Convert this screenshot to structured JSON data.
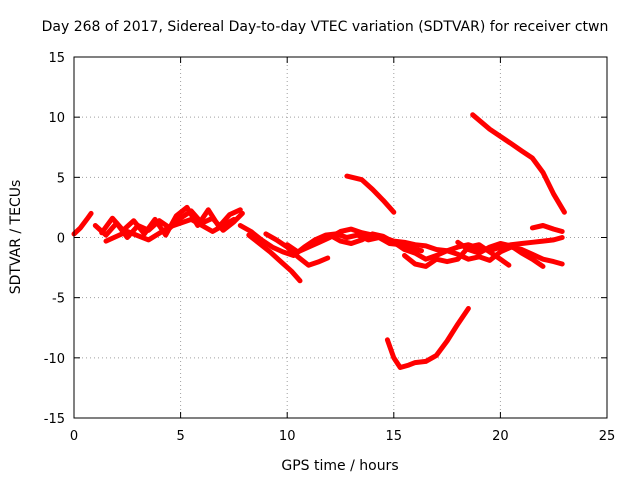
{
  "chart_data": {
    "type": "line",
    "title": "Day 268 of 2017, Sidereal Day-to-day VTEC variation (SDTVAR) for receiver ctwn",
    "xlabel": "GPS time / hours",
    "ylabel": "SDTVAR / TECUs",
    "xlim": [
      0,
      25
    ],
    "ylim": [
      -15,
      15
    ],
    "xticks": [
      0,
      5,
      10,
      15,
      20,
      25
    ],
    "yticks": [
      -15,
      -10,
      -5,
      0,
      5,
      10,
      15
    ],
    "grid": true,
    "line_color": "#ff0000",
    "series": [
      {
        "x": [
          0.0,
          0.3,
          0.6,
          0.8
        ],
        "y": [
          0.3,
          0.8,
          1.5,
          2.0
        ]
      },
      {
        "x": [
          1.0,
          1.5,
          2.0,
          2.5,
          3.0,
          3.5,
          4.0,
          4.5,
          5.0,
          5.5,
          6.0,
          6.5,
          7.0,
          7.5,
          7.9
        ],
        "y": [
          1.0,
          0.2,
          1.2,
          0.0,
          1.0,
          0.6,
          1.4,
          0.8,
          1.6,
          2.2,
          1.2,
          1.6,
          0.6,
          1.3,
          2.0
        ]
      },
      {
        "x": [
          1.3,
          1.8,
          2.3,
          2.8,
          3.3,
          3.8,
          4.3,
          4.8,
          5.3,
          5.8,
          6.3,
          6.8,
          7.3,
          7.8
        ],
        "y": [
          0.4,
          1.6,
          0.6,
          1.4,
          0.3,
          1.5,
          0.2,
          1.8,
          2.5,
          1.0,
          2.3,
          0.9,
          1.9,
          2.3
        ]
      },
      {
        "x": [
          1.5,
          2.5,
          3.5,
          4.5,
          5.5,
          6.5,
          7.5
        ],
        "y": [
          -0.3,
          0.5,
          -0.2,
          0.9,
          1.5,
          0.5,
          1.5
        ]
      },
      {
        "x": [
          7.8,
          8.3,
          8.8,
          9.3,
          9.8,
          10.3,
          10.8,
          11.3,
          11.8,
          12.3,
          12.8,
          13.3,
          13.8,
          14.3,
          14.8,
          15.3,
          15.8,
          16.3
        ],
        "y": [
          1.0,
          0.5,
          -0.2,
          -0.8,
          -1.2,
          -1.5,
          -0.8,
          -0.2,
          0.2,
          0.3,
          0.0,
          0.2,
          -0.2,
          0.0,
          -0.5,
          -0.6,
          -0.9,
          -1.1
        ]
      },
      {
        "x": [
          8.2,
          8.7,
          9.2,
          9.7,
          10.2,
          10.6
        ],
        "y": [
          0.2,
          -0.5,
          -1.2,
          -2.0,
          -2.8,
          -3.6
        ]
      },
      {
        "x": [
          9.0,
          9.5,
          10.0,
          10.5,
          11.0,
          11.5,
          11.9
        ],
        "y": [
          0.3,
          -0.2,
          -0.8,
          -1.6,
          -2.3,
          -2.0,
          -1.7
        ]
      },
      {
        "x": [
          10.0,
          10.5,
          11.0,
          11.5,
          12.0,
          12.5,
          13.0,
          13.5,
          14.0,
          14.5,
          15.0,
          15.5,
          16.0,
          16.5,
          17.0,
          17.5,
          18.0,
          18.5,
          19.0,
          19.5,
          20.0,
          20.5,
          21.0,
          21.5,
          22.0,
          22.5,
          22.9
        ],
        "y": [
          -0.6,
          -1.2,
          -0.8,
          -0.4,
          0.0,
          0.5,
          0.7,
          0.4,
          0.2,
          0.0,
          -0.3,
          -0.4,
          -0.6,
          -0.7,
          -1.0,
          -1.1,
          -0.8,
          -0.6,
          -0.9,
          -1.1,
          -0.8,
          -0.6,
          -0.5,
          -0.4,
          -0.3,
          -0.2,
          0.0
        ]
      },
      {
        "x": [
          12.0,
          12.5,
          13.0,
          13.5,
          14.0,
          14.5,
          15.0,
          15.5,
          16.0,
          16.5,
          17.0,
          17.5,
          18.0,
          18.5,
          19.0,
          19.5,
          20.0,
          20.5,
          21.0,
          21.5,
          22.0,
          22.5,
          22.9
        ],
        "y": [
          0.2,
          -0.3,
          -0.5,
          -0.2,
          0.3,
          0.1,
          -0.4,
          -1.0,
          -1.3,
          -1.8,
          -1.5,
          -1.1,
          -1.4,
          -1.8,
          -1.6,
          -1.9,
          -1.2,
          -0.8,
          -1.0,
          -1.4,
          -1.8,
          -2.0,
          -2.2
        ]
      },
      {
        "x": [
          15.5,
          16.0,
          16.5,
          17.0,
          17.5,
          18.0,
          18.5,
          19.0,
          19.5,
          20.0,
          20.4
        ],
        "y": [
          -1.5,
          -2.2,
          -2.4,
          -1.8,
          -2.0,
          -1.8,
          -0.8,
          -0.6,
          -1.2,
          -1.8,
          -2.3
        ]
      },
      {
        "x": [
          18.0,
          18.5,
          19.0,
          19.5,
          20.0,
          20.5,
          21.0,
          21.5,
          22.0
        ],
        "y": [
          -0.4,
          -1.0,
          -1.3,
          -0.8,
          -0.5,
          -0.7,
          -1.3,
          -1.8,
          -2.4
        ]
      },
      {
        "x": [
          21.5,
          22.0,
          22.5,
          22.9
        ],
        "y": [
          0.8,
          1.0,
          0.7,
          0.5
        ]
      },
      {
        "x": [
          12.8,
          13.5,
          14.0,
          14.5,
          15.0
        ],
        "y": [
          5.1,
          4.8,
          4.0,
          3.1,
          2.1
        ]
      },
      {
        "x": [
          14.7,
          15.0,
          15.3,
          15.7,
          16.0,
          16.5,
          17.0,
          17.5,
          18.0,
          18.5
        ],
        "y": [
          -8.5,
          -10.0,
          -10.8,
          -10.6,
          -10.4,
          -10.3,
          -9.8,
          -8.6,
          -7.2,
          -5.9
        ]
      },
      {
        "x": [
          18.7,
          19.5,
          20.5,
          21.0,
          21.5,
          22.0,
          22.5,
          23.0
        ],
        "y": [
          10.2,
          9.0,
          7.8,
          7.2,
          6.6,
          5.4,
          3.6,
          2.1
        ]
      }
    ]
  }
}
